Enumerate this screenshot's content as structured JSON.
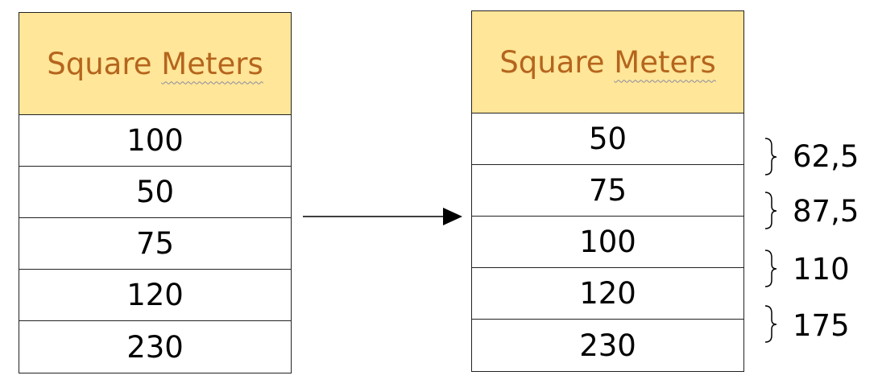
{
  "left_table": {
    "header_word1": "Square",
    "header_word2": "Meters",
    "rows": [
      "100",
      "50",
      "75",
      "120",
      "230"
    ]
  },
  "right_table": {
    "header_word1": "Square",
    "header_word2": "Meters",
    "rows": [
      "50",
      "75",
      "100",
      "120",
      "230"
    ]
  },
  "midpoints": [
    "62,5",
    "87,5",
    "110",
    "175"
  ]
}
